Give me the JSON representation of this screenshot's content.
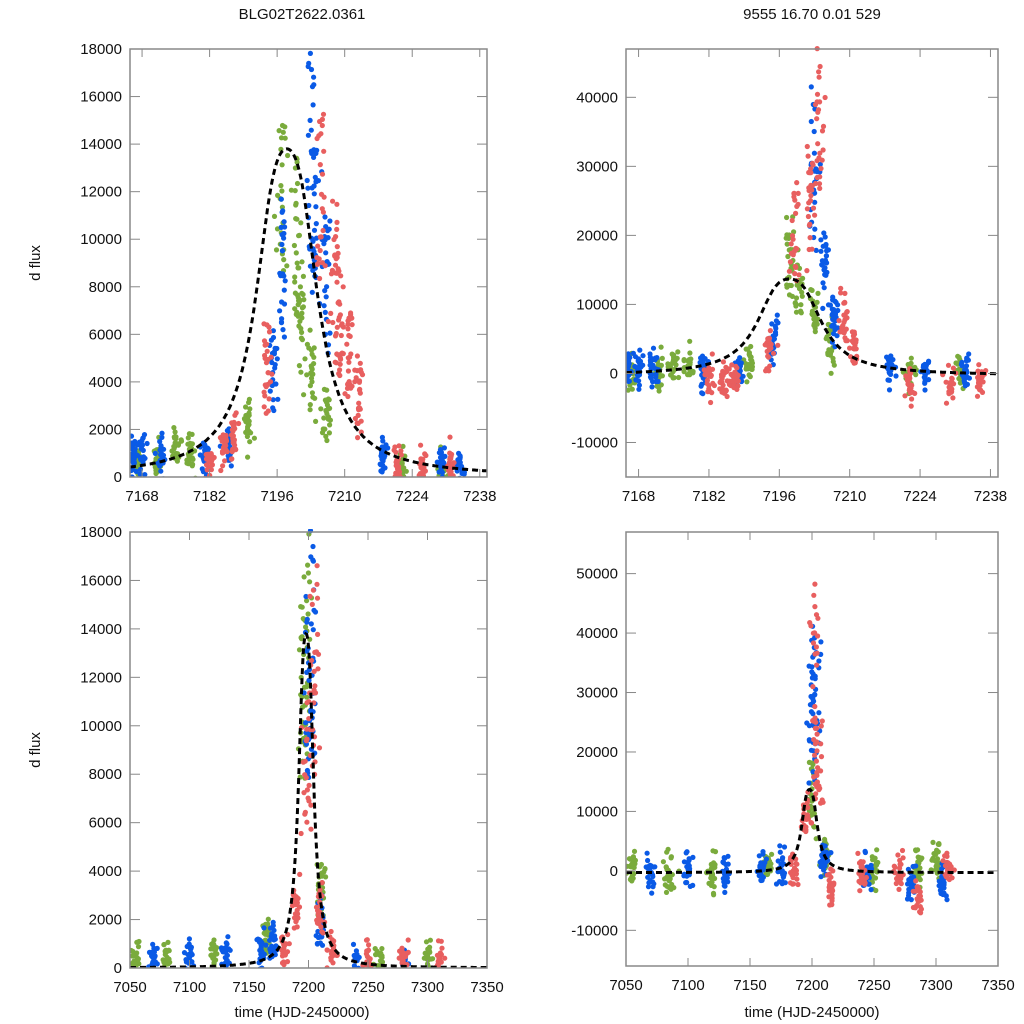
{
  "titles": {
    "left": "BLG02T2622.0361",
    "right": "9555  16.70  0.01  529"
  },
  "colors": {
    "series_a": "#0a5ae6",
    "series_b": "#e85f5f",
    "series_c": "#7aab3c",
    "model": "#000000",
    "axis": "#888888"
  },
  "chart_data": [
    {
      "id": "top-left",
      "type": "scatter",
      "title": "BLG02T2622.0361",
      "xlabel": "",
      "ylabel": "d flux",
      "xlim": [
        7165.5,
        7239.5
      ],
      "ylim": [
        0,
        18000
      ],
      "xticks": [
        7168,
        7182,
        7196,
        7210,
        7224,
        7238
      ],
      "yticks": [
        0,
        2000,
        4000,
        6000,
        8000,
        10000,
        12000,
        14000,
        16000,
        18000
      ],
      "grid": false,
      "model": {
        "t0": 7198.0,
        "peak": 13800,
        "baseline": 0,
        "width": 5.0
      },
      "series": [
        {
          "name": "blue",
          "color_key": "series_a",
          "cluster_points": [
            [
              7166,
              1000
            ],
            [
              7168,
              1200
            ],
            [
              7172,
              1100
            ],
            [
              7181,
              900
            ],
            [
              7186,
              1500
            ],
            [
              7195,
              5000
            ],
            [
              7197,
              10000
            ],
            [
              7203,
              16000
            ],
            [
              7204,
              12000
            ],
            [
              7206,
              10000
            ],
            [
              7218,
              1200
            ],
            [
              7230,
              500
            ],
            [
              7234,
              400
            ]
          ]
        },
        {
          "name": "red",
          "color_key": "series_b",
          "cluster_points": [
            [
              7182,
              800
            ],
            [
              7185,
              1500
            ],
            [
              7187,
              2000
            ],
            [
              7194,
              5500
            ],
            [
              7205,
              14000
            ],
            [
              7208,
              10000
            ],
            [
              7209,
              8000
            ],
            [
              7211,
              6000
            ],
            [
              7213,
              4000
            ],
            [
              7221,
              600
            ],
            [
              7226,
              300
            ],
            [
              7232,
              600
            ]
          ]
        },
        {
          "name": "green",
          "color_key": "series_c",
          "cluster_points": [
            [
              7167,
              800
            ],
            [
              7171,
              1000
            ],
            [
              7175,
              1500
            ],
            [
              7178,
              1200
            ],
            [
              7190,
              2500
            ],
            [
              7197,
              14000
            ],
            [
              7200,
              12000
            ],
            [
              7201,
              8000
            ],
            [
              7203,
              5000
            ],
            [
              7206,
              3000
            ],
            [
              7222,
              500
            ],
            [
              7230,
              300
            ]
          ]
        }
      ]
    },
    {
      "id": "top-right",
      "type": "scatter",
      "title": "9555  16.70  0.01  529",
      "xlabel": "",
      "ylabel": "",
      "xlim": [
        7165.5,
        7239.5
      ],
      "ylim": [
        -15000,
        47000
      ],
      "xticks": [
        7168,
        7182,
        7196,
        7210,
        7224,
        7238
      ],
      "yticks": [
        -10000,
        0,
        10000,
        20000,
        30000,
        40000
      ],
      "grid": false,
      "model": {
        "t0": 7198.0,
        "peak": 14000,
        "baseline": -300,
        "width": 5.0
      },
      "series": [
        {
          "name": "blue",
          "color_key": "series_a",
          "cluster_points": [
            [
              7166,
              500
            ],
            [
              7168,
              800
            ],
            [
              7171,
              600
            ],
            [
              7181,
              500
            ],
            [
              7188,
              1000
            ],
            [
              7195,
              6000
            ],
            [
              7203,
              35000
            ],
            [
              7205,
              18000
            ],
            [
              7207,
              10000
            ],
            [
              7218,
              1000
            ],
            [
              7225,
              200
            ],
            [
              7233,
              300
            ]
          ]
        },
        {
          "name": "red",
          "color_key": "series_b",
          "cluster_points": [
            [
              7182,
              -500
            ],
            [
              7185,
              -1500
            ],
            [
              7187,
              -500
            ],
            [
              7194,
              4000
            ],
            [
              7199,
              24000
            ],
            [
              7202,
              28000
            ],
            [
              7204,
              40000
            ],
            [
              7209,
              9000
            ],
            [
              7211,
              5000
            ],
            [
              7222,
              -2000
            ],
            [
              7230,
              -2000
            ],
            [
              7236,
              -1500
            ]
          ]
        },
        {
          "name": "green",
          "color_key": "series_c",
          "cluster_points": [
            [
              7167,
              0
            ],
            [
              7172,
              500
            ],
            [
              7175,
              1500
            ],
            [
              7178,
              1000
            ],
            [
              7190,
              1500
            ],
            [
              7198,
              20000
            ],
            [
              7200,
              15000
            ],
            [
              7203,
              10000
            ],
            [
              7206,
              5000
            ],
            [
              7222,
              0
            ],
            [
              7232,
              0
            ]
          ]
        }
      ]
    },
    {
      "id": "bottom-left",
      "type": "scatter",
      "title": "",
      "xlabel": "time (HJD-2450000)",
      "ylabel": "d flux",
      "xlim": [
        7050,
        7350
      ],
      "ylim": [
        0,
        18000
      ],
      "xticks": [
        7050,
        7100,
        7150,
        7200,
        7250,
        7300,
        7350
      ],
      "yticks": [
        0,
        2000,
        4000,
        6000,
        8000,
        10000,
        12000,
        14000,
        16000,
        18000
      ],
      "grid": false,
      "model": {
        "t0": 7198.0,
        "peak": 13800,
        "baseline": 0,
        "width": 5.0
      },
      "series": [
        {
          "name": "blue",
          "color_key": "series_a",
          "cluster_points": [
            [
              7070,
              400
            ],
            [
              7100,
              500
            ],
            [
              7130,
              600
            ],
            [
              7160,
              900
            ],
            [
              7170,
              1500
            ],
            [
              7200,
              14000
            ],
            [
              7203,
              16000
            ],
            [
              7210,
              2000
            ],
            [
              7240,
              200
            ],
            [
              7280,
              300
            ]
          ]
        },
        {
          "name": "red",
          "color_key": "series_b",
          "cluster_points": [
            [
              7180,
              1000
            ],
            [
              7190,
              3000
            ],
            [
              7198,
              10000
            ],
            [
              7205,
              14000
            ],
            [
              7210,
              3000
            ],
            [
              7220,
              800
            ],
            [
              7250,
              300
            ],
            [
              7280,
              300
            ],
            [
              7310,
              300
            ]
          ]
        },
        {
          "name": "green",
          "color_key": "series_c",
          "cluster_points": [
            [
              7055,
              300
            ],
            [
              7080,
              500
            ],
            [
              7120,
              600
            ],
            [
              7165,
              1500
            ],
            [
              7195,
              14000
            ],
            [
              7200,
              16000
            ],
            [
              7210,
              4000
            ],
            [
              7260,
              300
            ],
            [
              7300,
              600
            ]
          ]
        }
      ]
    },
    {
      "id": "bottom-right",
      "type": "scatter",
      "title": "",
      "xlabel": "time (HJD-2450000)",
      "ylabel": "",
      "xlim": [
        7050,
        7350
      ],
      "ylim": [
        -16000,
        57000
      ],
      "xticks": [
        7050,
        7100,
        7150,
        7200,
        7250,
        7300,
        7350
      ],
      "yticks": [
        -10000,
        0,
        10000,
        20000,
        30000,
        40000,
        50000
      ],
      "grid": false,
      "model": {
        "t0": 7198.0,
        "peak": 14000,
        "baseline": -300,
        "width": 5.0
      },
      "series": [
        {
          "name": "blue",
          "color_key": "series_a",
          "cluster_points": [
            [
              7070,
              0
            ],
            [
              7100,
              0
            ],
            [
              7130,
              0
            ],
            [
              7160,
              0
            ],
            [
              7175,
              500
            ],
            [
              7200,
              30000
            ],
            [
              7203,
              36000
            ],
            [
              7210,
              2000
            ],
            [
              7245,
              0
            ],
            [
              7280,
              -2000
            ],
            [
              7305,
              -3000
            ]
          ]
        },
        {
          "name": "red",
          "color_key": "series_b",
          "cluster_points": [
            [
              7185,
              0
            ],
            [
              7195,
              10000
            ],
            [
              7202,
              40000
            ],
            [
              7205,
              20000
            ],
            [
              7215,
              -3000
            ],
            [
              7240,
              -500
            ],
            [
              7270,
              -1000
            ],
            [
              7285,
              -5000
            ],
            [
              7310,
              0
            ]
          ]
        },
        {
          "name": "green",
          "color_key": "series_c",
          "cluster_points": [
            [
              7055,
              300
            ],
            [
              7085,
              -500
            ],
            [
              7120,
              0
            ],
            [
              7165,
              1000
            ],
            [
              7200,
              15000
            ],
            [
              7210,
              3000
            ],
            [
              7250,
              0
            ],
            [
              7285,
              800
            ],
            [
              7300,
              2000
            ]
          ]
        }
      ]
    }
  ]
}
